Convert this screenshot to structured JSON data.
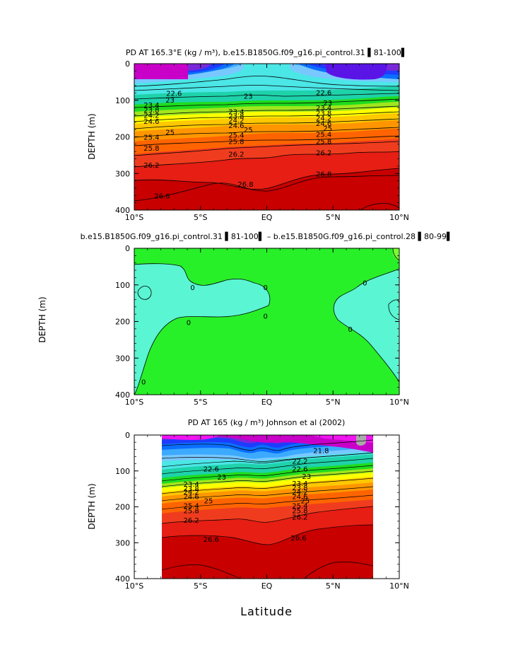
{
  "chart_data": [
    {
      "type": "contour",
      "title": "PD AT 165.3°E (kg / m³), b.e15.B1850G.f09_g16.pi_control.31 ▌81-100▌",
      "ylabel": "DEPTH  (m)",
      "xlabel": "",
      "x_range": [
        -10,
        10
      ],
      "y_range": [
        400,
        0
      ],
      "x_ticks": [
        "10°S",
        "5°S",
        "EQ",
        "5°N",
        "10°N"
      ],
      "y_ticks": [
        "0",
        "100",
        "200",
        "300",
        "400"
      ],
      "contour_labels": [
        {
          "text": "22.6",
          "x": -7.0,
          "y": 82
        },
        {
          "text": "23",
          "x": -7.3,
          "y": 100
        },
        {
          "text": "23.4",
          "x": -8.7,
          "y": 114
        },
        {
          "text": "23.8",
          "x": -8.7,
          "y": 128
        },
        {
          "text": "24.2",
          "x": -8.7,
          "y": 142
        },
        {
          "text": "24.6",
          "x": -8.7,
          "y": 158
        },
        {
          "text": "25",
          "x": -7.3,
          "y": 188
        },
        {
          "text": "25.4",
          "x": -8.7,
          "y": 202
        },
        {
          "text": "25.8",
          "x": -8.7,
          "y": 232
        },
        {
          "text": "26.2",
          "x": -8.7,
          "y": 278
        },
        {
          "text": "26.6",
          "x": -7.9,
          "y": 362
        },
        {
          "text": "23",
          "x": -1.4,
          "y": 90
        },
        {
          "text": "23.4",
          "x": -2.3,
          "y": 132
        },
        {
          "text": "23.8",
          "x": -2.3,
          "y": 144
        },
        {
          "text": "24.2",
          "x": -2.3,
          "y": 156
        },
        {
          "text": "24.6",
          "x": -2.3,
          "y": 170
        },
        {
          "text": "25",
          "x": -1.4,
          "y": 182
        },
        {
          "text": "25.4",
          "x": -2.3,
          "y": 196
        },
        {
          "text": "25.8",
          "x": -2.3,
          "y": 214
        },
        {
          "text": "26.2",
          "x": -2.3,
          "y": 248
        },
        {
          "text": "26.8",
          "x": -1.6,
          "y": 330
        },
        {
          "text": "22.6",
          "x": 4.3,
          "y": 80
        },
        {
          "text": "23",
          "x": 4.6,
          "y": 108
        },
        {
          "text": "23.4",
          "x": 4.3,
          "y": 122
        },
        {
          "text": "23.8",
          "x": 4.3,
          "y": 136
        },
        {
          "text": "24.2",
          "x": 4.3,
          "y": 150
        },
        {
          "text": "24.6",
          "x": 4.3,
          "y": 164
        },
        {
          "text": "25",
          "x": 4.6,
          "y": 178
        },
        {
          "text": "25.4",
          "x": 4.3,
          "y": 194
        },
        {
          "text": "25.8",
          "x": 4.3,
          "y": 214
        },
        {
          "text": "26.2",
          "x": 4.3,
          "y": 244
        },
        {
          "text": "26.8",
          "x": 4.3,
          "y": 302
        }
      ]
    },
    {
      "type": "contour",
      "title": "b.e15.B1850G.f09_g16.pi_control.31 ▌81-100▌ – b.e15.B1850G.f09_g16.pi_control.28 ▌80-99▌",
      "ylabel": "DEPTH  (m)",
      "xlabel": "",
      "x_range": [
        -10,
        10
      ],
      "y_range": [
        400,
        0
      ],
      "x_ticks": [
        "10°S",
        "5°S",
        "EQ",
        "5°N",
        "10°N"
      ],
      "y_ticks": [
        "0",
        "100",
        "200",
        "300",
        "400"
      ],
      "contour_labels": [
        {
          "text": "0",
          "x": -5.6,
          "y": 108
        },
        {
          "text": "0",
          "x": -0.1,
          "y": 108
        },
        {
          "text": "0",
          "x": 7.4,
          "y": 96
        },
        {
          "text": "0",
          "x": -5.9,
          "y": 204
        },
        {
          "text": "0",
          "x": -0.1,
          "y": 186
        },
        {
          "text": "0",
          "x": 6.3,
          "y": 222
        },
        {
          "text": "0",
          "x": -9.3,
          "y": 366
        }
      ]
    },
    {
      "type": "contour",
      "title": "PD AT 165 (kg / m³) Johnson et al (2002)",
      "ylabel": "DEPTH  (m)",
      "xlabel": "Latitude",
      "x_range": [
        -10,
        10
      ],
      "y_range": [
        400,
        0
      ],
      "data_x_range": [
        -7.9,
        8.0
      ],
      "data_y_range": [
        10,
        400
      ],
      "x_ticks": [
        "10°S",
        "5°S",
        "EQ",
        "5°N",
        "10°N"
      ],
      "y_ticks": [
        "0",
        "100",
        "200",
        "300",
        "400"
      ],
      "contour_labels": [
        {
          "text": "21.8",
          "x": 4.1,
          "y": 44
        },
        {
          "text": "22.2",
          "x": 2.5,
          "y": 74
        },
        {
          "text": "22.6",
          "x": -4.2,
          "y": 96
        },
        {
          "text": "22.6",
          "x": 2.5,
          "y": 96
        },
        {
          "text": "23",
          "x": -3.4,
          "y": 118
        },
        {
          "text": "23",
          "x": 3.0,
          "y": 116
        },
        {
          "text": "23.4",
          "x": -5.7,
          "y": 138
        },
        {
          "text": "23.8",
          "x": -5.7,
          "y": 150
        },
        {
          "text": "24.2",
          "x": -5.7,
          "y": 160
        },
        {
          "text": "24.6",
          "x": -5.7,
          "y": 172
        },
        {
          "text": "25",
          "x": -4.4,
          "y": 184
        },
        {
          "text": "25.4",
          "x": -5.7,
          "y": 198
        },
        {
          "text": "25.8",
          "x": -5.7,
          "y": 212
        },
        {
          "text": "26.2",
          "x": -5.7,
          "y": 238
        },
        {
          "text": "23.4",
          "x": 2.5,
          "y": 136
        },
        {
          "text": "23.8",
          "x": 2.5,
          "y": 148
        },
        {
          "text": "24.2",
          "x": 2.5,
          "y": 160
        },
        {
          "text": "24.6",
          "x": 2.5,
          "y": 172
        },
        {
          "text": "25",
          "x": 2.9,
          "y": 184
        },
        {
          "text": "25.4",
          "x": 2.5,
          "y": 198
        },
        {
          "text": "25.8",
          "x": 2.5,
          "y": 212
        },
        {
          "text": "26.2",
          "x": 2.5,
          "y": 230
        },
        {
          "text": "26.6",
          "x": -4.2,
          "y": 292
        },
        {
          "text": "26.6",
          "x": 2.4,
          "y": 288
        }
      ]
    }
  ],
  "colors": {
    "magenta": "#c800c8",
    "violet": "#7a28d8",
    "darkblue": "#1e3cff",
    "blue": "#0a6eff",
    "lightblue": "#3caaff",
    "skyblue": "#78c8ff",
    "cyan": "#4be6e6",
    "teal": "#1ed2aa",
    "green": "#1edc1e",
    "yellowgreen": "#a0e61e",
    "yellow": "#ffff00",
    "gold": "#ffc800",
    "orange": "#ff9600",
    "darkorange": "#ff6400",
    "red": "#f03c1e",
    "red2": "#e61e14",
    "crimson": "#c80000",
    "diffcyan": "#5af5d2",
    "diffgreen": "#28f028",
    "diffgreen2": "#78ff32",
    "gray": "#aaaaaa"
  }
}
